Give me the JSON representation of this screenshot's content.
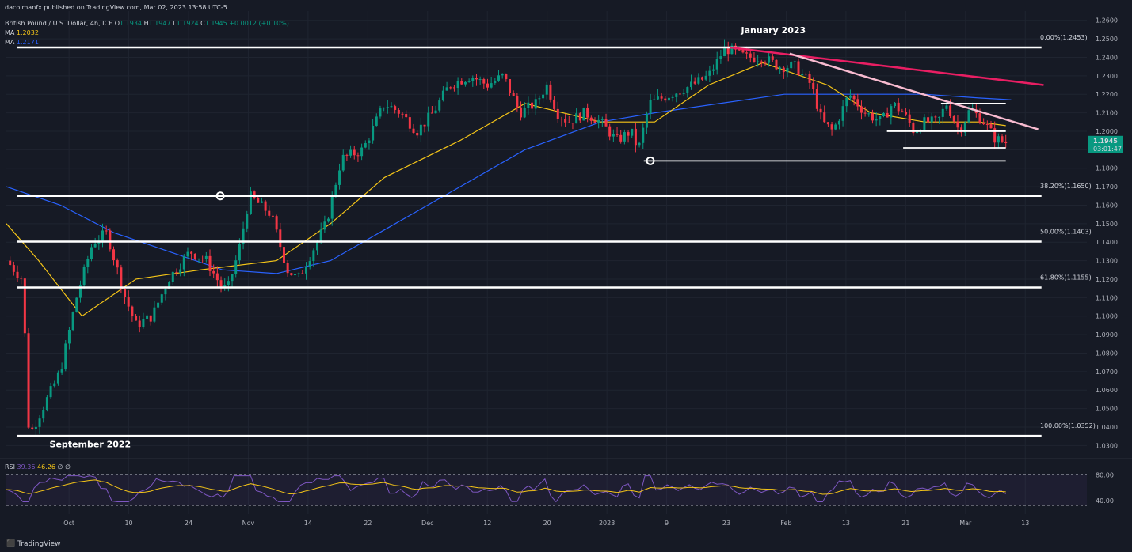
{
  "header": {
    "publisher": "dacolmanfx published on TradingView.com, Mar 02, 2023 13:58 UTC-5",
    "symbol": "British Pound / U.S. Dollar, 4h, ICE",
    "open_label": "O",
    "open": "1.1934",
    "high_label": "H",
    "high": "1.1947",
    "low_label": "L",
    "low": "1.1924",
    "close_label": "C",
    "close": "1.1945",
    "change": "+0.0012 (+0.10%)",
    "ma1_label": "MA",
    "ma1_value": "1.2032",
    "ma2_label": "MA",
    "ma2_value": "1.2171"
  },
  "brand": "TradingView",
  "colors": {
    "up": "#089981",
    "down": "#f23645",
    "ma_short": "#f5c518",
    "ma_long": "#2962ff",
    "rsi": "#7e57c2",
    "trend_red": "#e91e63",
    "trend_pink": "#f8bbd0"
  },
  "chart_data": {
    "type": "candlestick",
    "title": "British Pound / U.S. Dollar, 4h, ICE",
    "ylim": [
      1.025,
      1.265
    ],
    "y_ticks": [
      "1.2600",
      "1.2500",
      "1.2400",
      "1.2300",
      "1.2200",
      "1.2100",
      "1.2000",
      "1.1900",
      "1.1800",
      "1.1700",
      "1.1600",
      "1.1500",
      "1.1400",
      "1.1300",
      "1.1200",
      "1.1100",
      "1.1000",
      "1.0900",
      "1.0800",
      "1.0700",
      "1.0600",
      "1.0500",
      "1.0400",
      "1.0300"
    ],
    "x_ticks": [
      "Oct",
      "10",
      "24",
      "Nov",
      "14",
      "22",
      "Dec",
      "12",
      "20",
      "2023",
      "9",
      "23",
      "Feb",
      "13",
      "21",
      "Mar",
      "13"
    ],
    "price_path": [
      [
        0,
        1.13
      ],
      [
        0.015,
        1.12
      ],
      [
        0.021,
        1.035
      ],
      [
        0.05,
        1.07
      ],
      [
        0.065,
        1.11
      ],
      [
        0.08,
        1.14
      ],
      [
        0.093,
        1.145
      ],
      [
        0.11,
        1.11
      ],
      [
        0.12,
        1.095
      ],
      [
        0.135,
        1.1
      ],
      [
        0.15,
        1.12
      ],
      [
        0.17,
        1.135
      ],
      [
        0.185,
        1.13
      ],
      [
        0.2,
        1.115
      ],
      [
        0.205,
        1.115
      ],
      [
        0.215,
        1.135
      ],
      [
        0.225,
        1.165
      ],
      [
        0.245,
        1.155
      ],
      [
        0.26,
        1.125
      ],
      [
        0.27,
        1.12
      ],
      [
        0.283,
        1.135
      ],
      [
        0.296,
        1.15
      ],
      [
        0.31,
        1.185
      ],
      [
        0.33,
        1.19
      ],
      [
        0.35,
        1.215
      ],
      [
        0.365,
        1.21
      ],
      [
        0.38,
        1.2
      ],
      [
        0.395,
        1.21
      ],
      [
        0.41,
        1.225
      ],
      [
        0.43,
        1.23
      ],
      [
        0.445,
        1.225
      ],
      [
        0.46,
        1.23
      ],
      [
        0.475,
        1.21
      ],
      [
        0.49,
        1.215
      ],
      [
        0.5,
        1.225
      ],
      [
        0.51,
        1.21
      ],
      [
        0.52,
        1.205
      ],
      [
        0.535,
        1.21
      ],
      [
        0.55,
        1.205
      ],
      [
        0.565,
        1.195
      ],
      [
        0.578,
        1.2
      ],
      [
        0.585,
        1.19
      ],
      [
        0.595,
        1.215
      ],
      [
        0.615,
        1.22
      ],
      [
        0.635,
        1.225
      ],
      [
        0.65,
        1.23
      ],
      [
        0.665,
        1.245
      ],
      [
        0.685,
        1.24
      ],
      [
        0.7,
        1.24
      ],
      [
        0.715,
        1.235
      ],
      [
        0.73,
        1.235
      ],
      [
        0.745,
        1.225
      ],
      [
        0.755,
        1.205
      ],
      [
        0.765,
        1.2
      ],
      [
        0.78,
        1.22
      ],
      [
        0.795,
        1.21
      ],
      [
        0.81,
        1.205
      ],
      [
        0.82,
        1.215
      ],
      [
        0.83,
        1.21
      ],
      [
        0.84,
        1.2
      ],
      [
        0.85,
        1.205
      ],
      [
        0.862,
        1.205
      ],
      [
        0.87,
        1.215
      ],
      [
        0.882,
        1.2
      ],
      [
        0.892,
        1.212
      ],
      [
        0.905,
        1.205
      ],
      [
        0.915,
        1.196
      ],
      [
        0.925,
        1.194
      ]
    ],
    "ma_short_path": [
      [
        0,
        1.15
      ],
      [
        0.03,
        1.13
      ],
      [
        0.07,
        1.1
      ],
      [
        0.12,
        1.12
      ],
      [
        0.18,
        1.125
      ],
      [
        0.25,
        1.13
      ],
      [
        0.3,
        1.15
      ],
      [
        0.35,
        1.175
      ],
      [
        0.42,
        1.195
      ],
      [
        0.48,
        1.215
      ],
      [
        0.55,
        1.205
      ],
      [
        0.6,
        1.205
      ],
      [
        0.65,
        1.225
      ],
      [
        0.7,
        1.237
      ],
      [
        0.76,
        1.225
      ],
      [
        0.8,
        1.21
      ],
      [
        0.85,
        1.205
      ],
      [
        0.9,
        1.205
      ],
      [
        0.925,
        1.203
      ]
    ],
    "ma_long_path": [
      [
        0,
        1.17
      ],
      [
        0.05,
        1.16
      ],
      [
        0.1,
        1.145
      ],
      [
        0.2,
        1.125
      ],
      [
        0.25,
        1.123
      ],
      [
        0.3,
        1.13
      ],
      [
        0.36,
        1.15
      ],
      [
        0.42,
        1.17
      ],
      [
        0.48,
        1.19
      ],
      [
        0.55,
        1.205
      ],
      [
        0.6,
        1.21
      ],
      [
        0.66,
        1.215
      ],
      [
        0.72,
        1.22
      ],
      [
        0.8,
        1.22
      ],
      [
        0.85,
        1.22
      ],
      [
        0.9,
        1.218
      ],
      [
        0.93,
        1.217
      ]
    ],
    "rsi": {
      "label": "RSI",
      "value": "39.36",
      "ma_value": "46.26",
      "extra": "∅ ∅",
      "levels": [
        "80.00",
        "40.00"
      ]
    },
    "fib_levels": [
      {
        "label": "0.00%(1.2453)",
        "price": 1.2453
      },
      {
        "label": "38.20%(1.1650)",
        "price": 1.165
      },
      {
        "label": "50.00%(1.1403)",
        "price": 1.1403
      },
      {
        "label": "61.80%(1.1155)",
        "price": 1.1155
      },
      {
        "label": "100.00%(1.0352)",
        "price": 1.0352
      }
    ],
    "support_lines": [
      {
        "x0": 0.59,
        "x1": 0.925,
        "price": 1.184
      },
      {
        "x0": 0.83,
        "x1": 0.925,
        "price": 1.191
      },
      {
        "x0": 0.815,
        "x1": 0.925,
        "price": 1.2
      },
      {
        "x0": 0.865,
        "x1": 0.925,
        "price": 1.215
      }
    ],
    "trendlines": [
      {
        "x0": 0.67,
        "p0": 1.2453,
        "x1": 0.96,
        "p1": 1.225,
        "color": "#e91e63"
      },
      {
        "x0": 0.725,
        "p0": 1.242,
        "x1": 0.955,
        "p1": 1.201,
        "color": "#f8bbd0"
      }
    ],
    "markers": [
      {
        "x": 0.198,
        "price": 1.165
      },
      {
        "x": 0.596,
        "price": 1.184
      }
    ],
    "annotations": [
      {
        "text": "January 2023",
        "x": 0.68,
        "price": 1.253
      },
      {
        "text": "September 2022",
        "x": 0.04,
        "price": 1.029
      }
    ],
    "last_price": "1.1945",
    "countdown": "03:01:47"
  }
}
